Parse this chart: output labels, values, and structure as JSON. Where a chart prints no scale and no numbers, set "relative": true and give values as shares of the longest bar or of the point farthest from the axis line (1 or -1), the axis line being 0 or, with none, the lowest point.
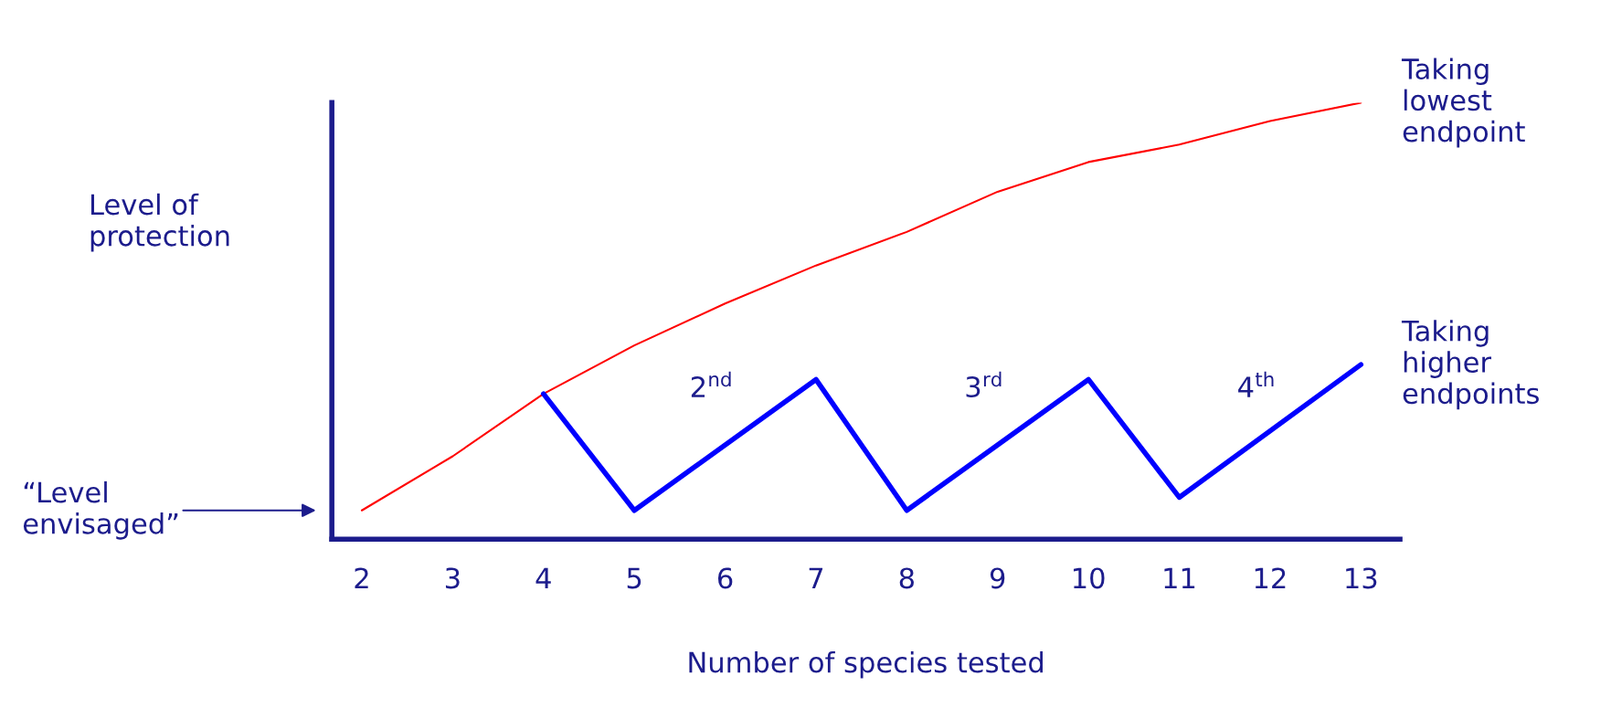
{
  "chart_data": {
    "type": "line",
    "relative": true,
    "xlabel": "Number of species tested",
    "ylabel": "Level of\nprotection",
    "x": [
      2,
      3,
      4,
      5,
      6,
      7,
      8,
      9,
      10,
      11,
      12,
      13
    ],
    "xlim": [
      1.67,
      13.43
    ],
    "xticks": [
      2,
      3,
      4,
      5,
      6,
      7,
      8,
      9,
      10,
      11,
      12,
      13
    ],
    "series": [
      {
        "name": "Taking\nlowest\nendpoint",
        "color": "#ff0000",
        "values": [
          0.066,
          0.19,
          0.333,
          0.444,
          0.54,
          0.627,
          0.704,
          0.796,
          0.864,
          0.904,
          0.958,
          1.0
        ]
      },
      {
        "name": "Taking\nhigher\nendpoints",
        "color": "#0000ff",
        "x": [
          4,
          5,
          7,
          8,
          10,
          11,
          13
        ],
        "values": [
          0.333,
          0.066,
          0.366,
          0.066,
          0.366,
          0.096,
          0.4
        ]
      }
    ],
    "annotations": [
      "2$^{nd}$",
      "3$^{rd}$",
      "4$^{th}$",
      "“Level\nenvisaged”"
    ],
    "legend": false,
    "grid": false
  }
}
